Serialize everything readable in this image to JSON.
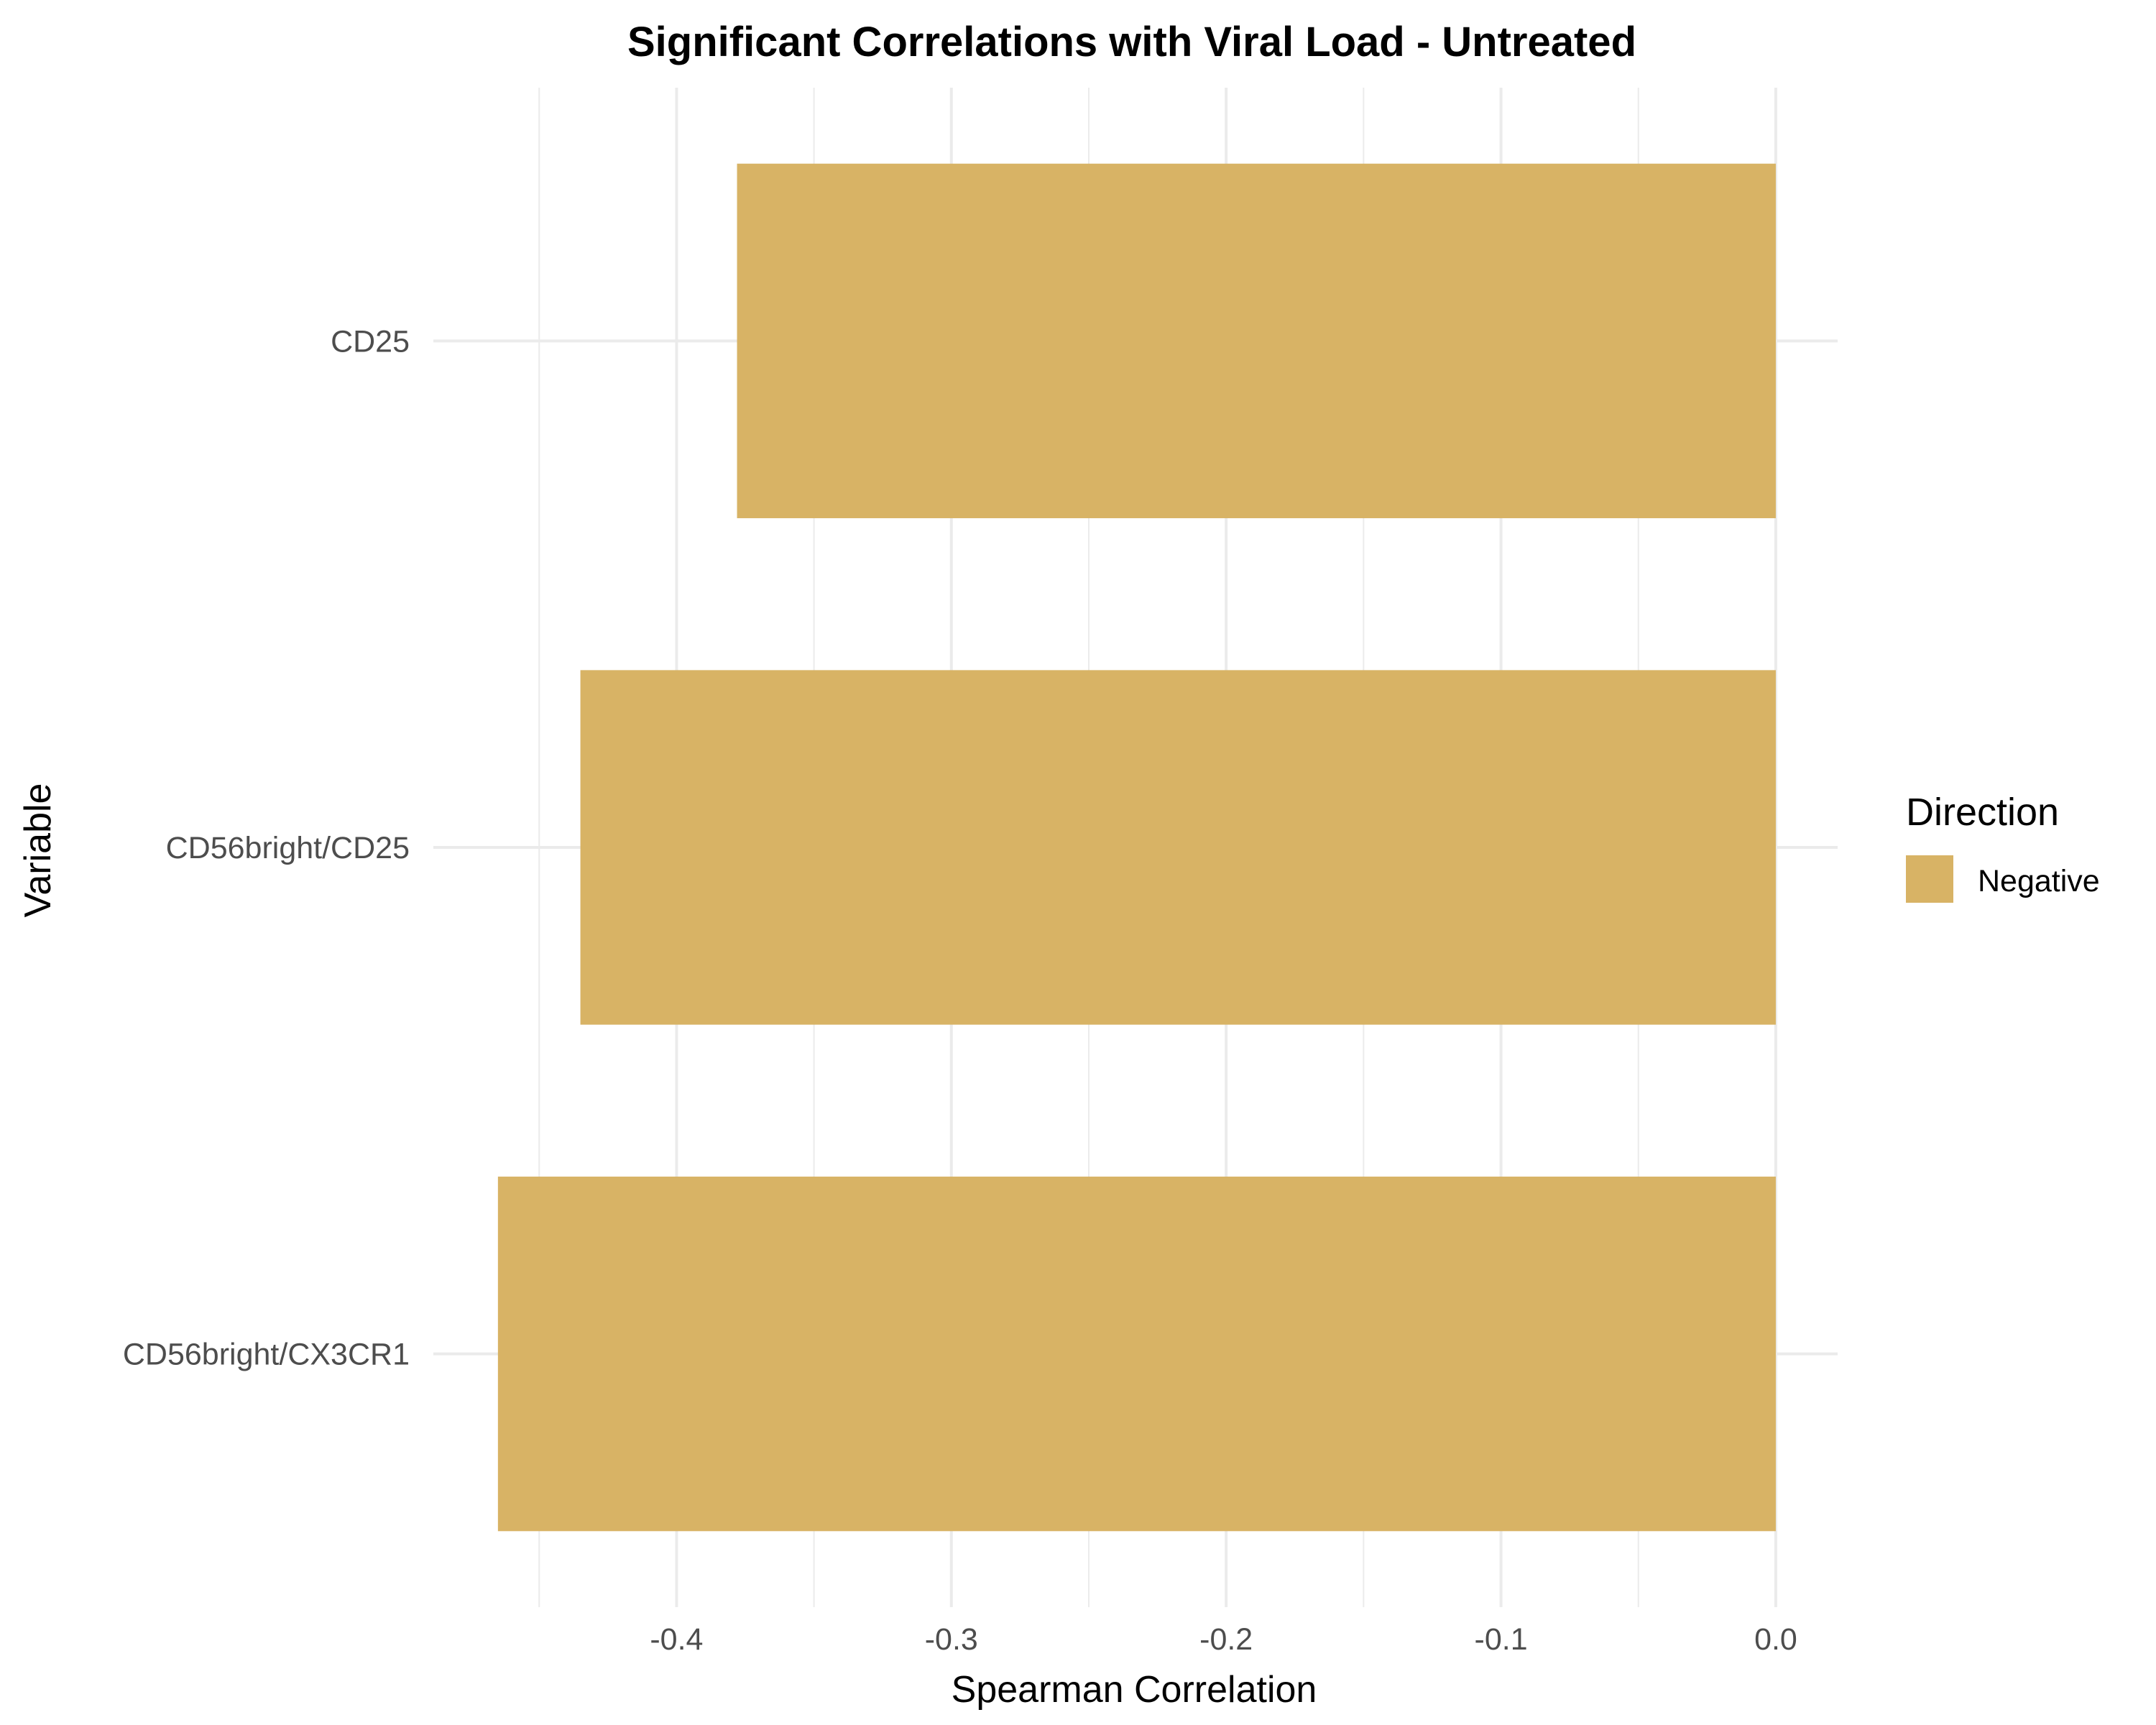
{
  "chart_data": {
    "type": "bar",
    "orientation": "horizontal",
    "title": "Significant Correlations with Viral Load - Untreated",
    "xlabel": "Spearman Correlation",
    "ylabel": "Variable",
    "categories": [
      "CD25",
      "CD56bright/CD25",
      "CD56bright/CX3CR1"
    ],
    "values": [
      -0.378,
      -0.435,
      -0.465
    ],
    "xlim": [
      -0.4885,
      0.0225
    ],
    "x_ticks": [
      -0.4,
      -0.3,
      -0.2,
      -0.1,
      0.0
    ],
    "x_tick_labels": [
      "-0.4",
      "-0.3",
      "-0.2",
      "-0.1",
      "0.0"
    ],
    "grid": true,
    "legend": {
      "title": "Direction",
      "position": "right",
      "entries": [
        {
          "label": "Negative",
          "color": "#d8b365"
        }
      ]
    },
    "bar_color": "#d8b365"
  }
}
